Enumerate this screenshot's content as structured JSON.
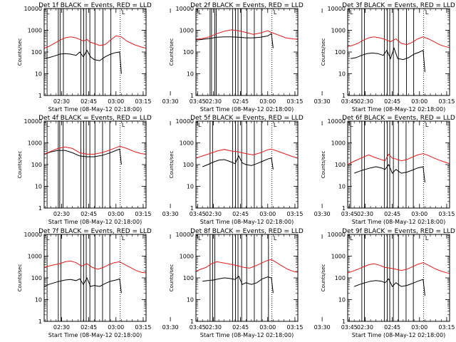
{
  "figure": {
    "colors": {
      "events": "#000000",
      "lld": "#e41a1c",
      "axes": "#000000",
      "dotted": "#000000"
    },
    "ylabel": "Counts/sec",
    "xlabel": "Start Time (08-May-12 02:18:00)",
    "time_ticks": [
      "02:30",
      "02:45",
      "03:00",
      "03:15",
      "03:30",
      "03:45"
    ],
    "y_ticks": [
      "1",
      "10",
      "100",
      "1000",
      "10000"
    ],
    "marker_letter": "L"
  },
  "chart_data": [
    {
      "type": "line",
      "title": "Det 1f BLACK = Events, RED = LLD",
      "x_range_min": [
        2.4,
        58.6
      ],
      "ylim": [
        1,
        10000
      ],
      "y_scale": "log",
      "vlines_min": [
        2.4,
        4.0,
        10.2,
        11.2,
        13.0,
        22.6,
        24.2,
        25.6,
        27.6,
        30.4,
        34.8,
        39.2
      ],
      "dotted_vline_min": 44.3,
      "series": [
        {
          "name": "Events",
          "color": "#000000",
          "x": [
            2.4,
            5,
            8,
            11,
            14,
            17,
            20,
            22,
            24,
            26,
            28,
            30,
            33,
            36,
            39,
            42,
            44,
            45
          ],
          "y": [
            50,
            55,
            65,
            80,
            85,
            80,
            70,
            100,
            60,
            120,
            60,
            45,
            40,
            60,
            80,
            95,
            100,
            10
          ]
        },
        {
          "name": "LLD",
          "color": "#e41a1c",
          "x": [
            2.4,
            5,
            8,
            11,
            14,
            17,
            20,
            22,
            24,
            26,
            28,
            30,
            33,
            36,
            39,
            42,
            45,
            48,
            52,
            56,
            58.6
          ],
          "y": [
            150,
            180,
            250,
            350,
            450,
            500,
            450,
            380,
            320,
            380,
            280,
            250,
            200,
            220,
            350,
            550,
            500,
            320,
            220,
            170,
            150
          ]
        }
      ]
    },
    {
      "type": "line",
      "title": "Det 2f BLACK = Events, RED = LLD",
      "x_range_min": [
        2.4,
        58.6
      ],
      "ylim": [
        1,
        10000
      ],
      "y_scale": "log",
      "vlines_min": [
        2.4,
        10.2,
        11.0,
        12.8,
        13.6,
        22.6,
        24.2,
        25.6,
        27.4,
        30.6,
        34.6,
        38.6
      ],
      "dotted_vline_min": 44.3,
      "series": [
        {
          "name": "Events",
          "color": "#000000",
          "x": [
            2.4,
            6,
            10,
            14,
            18,
            22,
            26,
            30,
            34,
            38,
            42,
            44,
            45
          ],
          "y": [
            350,
            380,
            420,
            480,
            500,
            500,
            480,
            450,
            450,
            480,
            550,
            700,
            150
          ]
        },
        {
          "name": "LLD",
          "color": "#e41a1c",
          "x": [
            2.4,
            6,
            10,
            14,
            18,
            22,
            26,
            30,
            34,
            38,
            42,
            44,
            48,
            52,
            56,
            58.6
          ],
          "y": [
            380,
            420,
            500,
            700,
            900,
            1050,
            950,
            800,
            650,
            750,
            950,
            800,
            600,
            450,
            400,
            380
          ]
        }
      ]
    },
    {
      "type": "line",
      "title": "Det 3f BLACK = Events, RED = LLD",
      "x_range_min": [
        2.4,
        58.6
      ],
      "ylim": [
        1,
        10000
      ],
      "y_scale": "log",
      "vlines_min": [
        10.2,
        11.6,
        22.6,
        24.2,
        25.6,
        27.6,
        30.4,
        34.8,
        38.8
      ],
      "dotted_vline_min": 44.3,
      "series": [
        {
          "name": "Events",
          "color": "#000000",
          "x": [
            4,
            7,
            10,
            13,
            16,
            19,
            22,
            24,
            26,
            28,
            30,
            33,
            36,
            39,
            42,
            44,
            45
          ],
          "y": [
            50,
            55,
            70,
            85,
            90,
            85,
            70,
            120,
            50,
            150,
            50,
            45,
            55,
            80,
            100,
            120,
            12
          ]
        },
        {
          "name": "LLD",
          "color": "#e41a1c",
          "x": [
            2.4,
            5,
            8,
            11,
            14,
            17,
            20,
            23,
            26,
            29,
            32,
            35,
            38,
            41,
            44,
            47,
            50,
            53,
            56,
            58.6
          ],
          "y": [
            180,
            200,
            250,
            350,
            450,
            500,
            450,
            380,
            300,
            400,
            250,
            220,
            280,
            400,
            500,
            400,
            300,
            220,
            180,
            160
          ]
        }
      ]
    },
    {
      "type": "line",
      "title": "Det 4f BLACK = Events, RED = LLD",
      "x_range_min": [
        2.4,
        58.6
      ],
      "ylim": [
        1,
        10000
      ],
      "y_scale": "log",
      "vlines_min": [
        2.4,
        4.0,
        10.2,
        11.0,
        12.8,
        22.6,
        24.2,
        25.6,
        27.6,
        30.4,
        34.6,
        38.6
      ],
      "dotted_vline_min": 44.3,
      "series": [
        {
          "name": "Events",
          "color": "#000000",
          "x": [
            2.4,
            6,
            10,
            14,
            18,
            22,
            26,
            30,
            34,
            38,
            42,
            44,
            45
          ],
          "y": [
            300,
            380,
            450,
            450,
            350,
            250,
            230,
            230,
            260,
            330,
            450,
            520,
            100
          ]
        },
        {
          "name": "LLD",
          "color": "#e41a1c",
          "x": [
            2.4,
            6,
            10,
            14,
            18,
            22,
            26,
            30,
            34,
            38,
            42,
            44,
            48,
            52,
            56,
            58.6
          ],
          "y": [
            300,
            400,
            550,
            650,
            550,
            350,
            300,
            300,
            350,
            450,
            600,
            700,
            550,
            400,
            320,
            300
          ]
        }
      ]
    },
    {
      "type": "line",
      "title": "Det 5f BLACK = Events, RED = LLD",
      "x_range_min": [
        2.4,
        58.6
      ],
      "ylim": [
        1,
        10000
      ],
      "y_scale": "log",
      "vlines_min": [
        10.2,
        11.6,
        22.6,
        24.2,
        25.6,
        27.6,
        30.4,
        34.6,
        38.6
      ],
      "dotted_vline_min": 44.3,
      "series": [
        {
          "name": "Events",
          "color": "#000000",
          "x": [
            6,
            9,
            12,
            15,
            18,
            21,
            24,
            26,
            28,
            30,
            33,
            36,
            39,
            42,
            44,
            45
          ],
          "y": [
            80,
            100,
            130,
            160,
            170,
            140,
            110,
            250,
            120,
            100,
            90,
            110,
            140,
            180,
            200,
            60
          ]
        },
        {
          "name": "LLD",
          "color": "#e41a1c",
          "x": [
            2.4,
            6,
            10,
            14,
            18,
            22,
            26,
            30,
            34,
            38,
            42,
            44,
            48,
            52,
            56,
            58.6
          ],
          "y": [
            200,
            250,
            320,
            420,
            500,
            420,
            380,
            320,
            280,
            350,
            480,
            520,
            400,
            300,
            230,
            200
          ]
        }
      ]
    },
    {
      "type": "line",
      "title": "Det 6f BLACK = Events, RED = LLD",
      "x_range_min": [
        2.4,
        58.6
      ],
      "ylim": [
        1,
        10000
      ],
      "y_scale": "log",
      "vlines_min": [
        2.4,
        4.0,
        10.2,
        11.6,
        22.6,
        24.2,
        25.6,
        27.6,
        30.4,
        34.6,
        38.6
      ],
      "dotted_vline_min": 44.3,
      "series": [
        {
          "name": "Events",
          "color": "#000000",
          "x": [
            6,
            9,
            12,
            15,
            18,
            21,
            23,
            25,
            27,
            29,
            32,
            35,
            38,
            41,
            44,
            45
          ],
          "y": [
            40,
            50,
            60,
            70,
            80,
            70,
            60,
            100,
            40,
            60,
            40,
            45,
            55,
            70,
            80,
            15
          ]
        },
        {
          "name": "LLD",
          "color": "#e41a1c",
          "x": [
            2.4,
            5,
            8,
            11,
            14,
            17,
            20,
            23,
            25,
            27,
            29,
            32,
            35,
            38,
            41,
            44,
            47,
            50,
            53,
            56,
            58.6
          ],
          "y": [
            100,
            130,
            170,
            220,
            280,
            220,
            180,
            150,
            300,
            200,
            180,
            150,
            170,
            220,
            280,
            320,
            260,
            200,
            160,
            130,
            110
          ]
        }
      ]
    },
    {
      "type": "line",
      "title": "Det 7f BLACK = Events, RED = LLD",
      "x_range_min": [
        2.4,
        58.6
      ],
      "ylim": [
        1,
        10000
      ],
      "y_scale": "log",
      "vlines_min": [
        2.4,
        4.0,
        10.2,
        11.6,
        22.6,
        24.2,
        25.6,
        27.6,
        30.4,
        34.6,
        38.6
      ],
      "dotted_vline_min": 44.3,
      "series": [
        {
          "name": "Events",
          "color": "#000000",
          "x": [
            2.4,
            5,
            8,
            11,
            14,
            17,
            20,
            22,
            24,
            26,
            28,
            30,
            33,
            36,
            39,
            42,
            44,
            45
          ],
          "y": [
            40,
            50,
            60,
            70,
            80,
            85,
            75,
            90,
            50,
            100,
            40,
            45,
            40,
            55,
            70,
            80,
            90,
            20
          ]
        },
        {
          "name": "LLD",
          "color": "#e41a1c",
          "x": [
            2.4,
            5,
            8,
            11,
            14,
            17,
            20,
            23,
            26,
            29,
            32,
            35,
            38,
            41,
            44,
            47,
            50,
            53,
            56,
            58.6
          ],
          "y": [
            300,
            350,
            400,
            450,
            550,
            600,
            500,
            350,
            450,
            300,
            250,
            300,
            400,
            500,
            550,
            400,
            300,
            220,
            180,
            170
          ]
        }
      ]
    },
    {
      "type": "line",
      "title": "Det 8f BLACK = Events, RED = LLD",
      "x_range_min": [
        2.4,
        58.6
      ],
      "ylim": [
        1,
        10000
      ],
      "y_scale": "log",
      "vlines_min": [
        10.2,
        11.6,
        12.8,
        22.6,
        24.2,
        25.6,
        27.6,
        30.4,
        34.6,
        38.6,
        42.4
      ],
      "dotted_vline_min": 44.3,
      "series": [
        {
          "name": "Events",
          "color": "#000000",
          "x": [
            6,
            9,
            12,
            15,
            18,
            21,
            24,
            26,
            28,
            30,
            33,
            36,
            39,
            42,
            44,
            45
          ],
          "y": [
            70,
            75,
            80,
            90,
            100,
            95,
            85,
            120,
            50,
            60,
            50,
            60,
            90,
            110,
            100,
            20
          ]
        },
        {
          "name": "LLD",
          "color": "#e41a1c",
          "x": [
            2.4,
            5,
            8,
            11,
            14,
            17,
            20,
            23,
            26,
            29,
            32,
            35,
            38,
            41,
            44,
            47,
            50,
            53,
            56,
            58.6
          ],
          "y": [
            200,
            250,
            300,
            450,
            550,
            500,
            450,
            400,
            350,
            300,
            280,
            350,
            450,
            600,
            700,
            500,
            350,
            250,
            200,
            180
          ]
        }
      ]
    },
    {
      "type": "line",
      "title": "Det 9f BLACK = Events, RED = LLD",
      "x_range_min": [
        2.4,
        58.6
      ],
      "ylim": [
        1,
        10000
      ],
      "y_scale": "log",
      "vlines_min": [
        10.2,
        11.6,
        22.6,
        24.2,
        25.6,
        27.6,
        30.4,
        34.6,
        38.6
      ],
      "dotted_vline_min": 44.3,
      "series": [
        {
          "name": "Events",
          "color": "#000000",
          "x": [
            6,
            9,
            12,
            15,
            18,
            21,
            23,
            25,
            27,
            29,
            32,
            35,
            38,
            41,
            44,
            45
          ],
          "y": [
            40,
            50,
            60,
            70,
            75,
            70,
            60,
            90,
            40,
            60,
            40,
            45,
            55,
            70,
            85,
            15
          ]
        },
        {
          "name": "LLD",
          "color": "#e41a1c",
          "x": [
            2.4,
            5,
            8,
            11,
            14,
            17,
            20,
            23,
            26,
            29,
            32,
            35,
            38,
            41,
            44,
            47,
            50,
            53,
            56,
            58.6
          ],
          "y": [
            170,
            200,
            250,
            320,
            400,
            450,
            380,
            300,
            280,
            250,
            220,
            250,
            320,
            420,
            500,
            380,
            280,
            220,
            180,
            160
          ]
        }
      ]
    }
  ]
}
